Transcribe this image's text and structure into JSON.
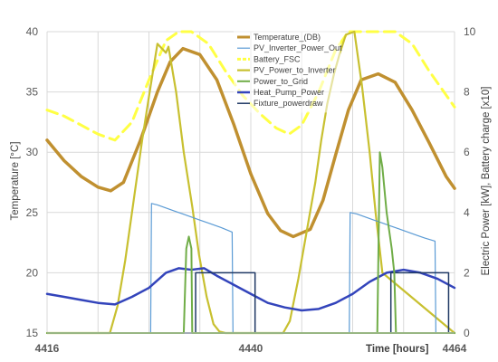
{
  "chart_data": {
    "type": "line",
    "title": "",
    "xlabel": "Time [hours]",
    "ylabel_left": "Temperature [°C]",
    "ylabel_right": "Electric Power [kW], Battery charge [x10]",
    "xlim": [
      4416,
      4464
    ],
    "ylim_left": [
      15,
      40
    ],
    "ylim_right": [
      0,
      10
    ],
    "x_ticks": [
      4416,
      4440,
      4464
    ],
    "y_left_ticks": [
      15,
      20,
      25,
      30,
      35,
      40
    ],
    "y_right_ticks": [
      0,
      2,
      4,
      6,
      8,
      10
    ],
    "grid": true,
    "legend_position": "top-center",
    "series": [
      {
        "name": "Temperature_(DB)",
        "axis": "left",
        "color": "#C09030",
        "style": "solid",
        "width": 3.5,
        "x": [
          4416,
          4418,
          4420,
          4422,
          4423.5,
          4425,
          4427,
          4429,
          4430.5,
          4432,
          4434,
          4436,
          4438,
          4440,
          4442,
          4443.5,
          4445,
          4447,
          4448.5,
          4450,
          4451.5,
          4453,
          4455,
          4457,
          4459,
          4461,
          4463,
          4464
        ],
        "y": [
          31.0,
          29.3,
          28.0,
          27.1,
          26.8,
          27.5,
          31.0,
          35.0,
          37.5,
          38.6,
          38.1,
          36.0,
          32.3,
          28.2,
          24.9,
          23.5,
          23.0,
          23.6,
          26.0,
          29.8,
          33.5,
          36.0,
          36.5,
          35.8,
          33.5,
          30.8,
          28.0,
          27.0
        ]
      },
      {
        "name": "PV_Inverter_Power_Out",
        "axis": "right",
        "color": "#5B9BD5",
        "style": "solid",
        "width": 1.2,
        "x": [
          4416,
          4428.2,
          4428.3,
          4429,
          4430,
          4431,
          4432,
          4433,
          4434,
          4435,
          4436.5,
          4437.8,
          4437.9,
          4451.6,
          4451.7,
          4452.5,
          4453.5,
          4454.5,
          4455.5,
          4456.5,
          4457.5,
          4458.5,
          4459.5,
          4460.5,
          4461.7,
          4461.8,
          4464
        ],
        "y": [
          0,
          0,
          4.3,
          4.25,
          4.15,
          4.05,
          3.95,
          3.85,
          3.75,
          3.65,
          3.5,
          3.35,
          0,
          0,
          4.0,
          3.95,
          3.85,
          3.75,
          3.65,
          3.55,
          3.45,
          3.35,
          3.25,
          3.15,
          3.05,
          0,
          0
        ]
      },
      {
        "name": "Battery_FSC",
        "axis": "right",
        "color": "#FFFF44",
        "style": "dashed",
        "width": 3,
        "x": [
          4416,
          4418,
          4420,
          4422,
          4424,
          4426,
          4428,
          4430,
          4431.5,
          4433,
          4435,
          4437,
          4439,
          4441,
          4443,
          4444.5,
          4446,
          4448,
          4450,
          4451.5,
          4453,
          4455,
          4457,
          4459,
          4461,
          4463,
          4464
        ],
        "y": [
          7.4,
          7.2,
          6.9,
          6.6,
          6.4,
          7.0,
          8.4,
          9.7,
          10.0,
          10.0,
          9.6,
          8.7,
          7.9,
          7.3,
          6.8,
          6.6,
          6.9,
          8.0,
          9.4,
          10.0,
          10.0,
          10.0,
          10.0,
          9.6,
          8.7,
          7.9,
          7.5
        ]
      },
      {
        "name": "PV_Power_to_Inverter",
        "axis": "right",
        "color": "#C8C030",
        "style": "solid",
        "width": 2.2,
        "x": [
          4416,
          4423.4,
          4424.3,
          4425.2,
          4426.2,
          4427.2,
          4428.2,
          4429.0,
          4430.0,
          4430.3,
          4431.2,
          4432.1,
          4433.1,
          4433.9,
          4434.8,
          4435.6,
          4436.3,
          4437.0,
          4443.8,
          4444.6,
          4445.6,
          4446.6,
          4447.6,
          4448.3,
          4449.0,
          4449.8,
          4450.5,
          4451.2,
          4452.2,
          4453.1,
          4454.0,
          4454.7,
          4455.5,
          4464
        ],
        "y": [
          0,
          0,
          0.9,
          2.4,
          4.4,
          6.4,
          8.2,
          9.6,
          9.3,
          9.5,
          8.0,
          6.0,
          4.2,
          2.6,
          1.2,
          0.3,
          0.05,
          0,
          0,
          0.4,
          1.8,
          3.4,
          5.0,
          6.4,
          7.6,
          8.6,
          9.3,
          9.9,
          10.0,
          8.2,
          6.0,
          4.0,
          2.0,
          0
        ]
      },
      {
        "name": "Power_to_Grid",
        "axis": "right",
        "color": "#70AD47",
        "style": "solid",
        "width": 2,
        "x": [
          4416,
          4432.1,
          4432.4,
          4432.7,
          4433.0,
          4433.1,
          4433.3,
          4464
        ],
        "y": [
          0,
          0,
          2.8,
          3.2,
          2.8,
          0,
          0,
          0
        ],
        "x2": [
          4447,
          4454.9,
          4455.2,
          4455.5,
          4456.0,
          4456.6,
          4456.9,
          4457.1,
          4464
        ],
        "y2": [
          0,
          0,
          6.0,
          5.5,
          4.0,
          2.8,
          2.0,
          0,
          0
        ]
      },
      {
        "name": "Heat_Pump_Power",
        "axis": "right",
        "color": "#3344BB",
        "style": "solid",
        "width": 2.5,
        "x": [
          4416,
          4418,
          4420,
          4422,
          4424,
          4426,
          4428,
          4430,
          4431.5,
          4433,
          4434.5,
          4436,
          4438,
          4440,
          4442,
          4444,
          4446,
          4448,
          4450,
          4452,
          4454,
          4456,
          4458,
          4460,
          4462,
          4464
        ],
        "y": [
          1.3,
          1.2,
          1.1,
          1.0,
          0.95,
          1.2,
          1.5,
          2.0,
          2.15,
          2.1,
          2.15,
          1.9,
          1.6,
          1.3,
          1.0,
          0.85,
          0.75,
          0.8,
          1.0,
          1.3,
          1.7,
          2.0,
          2.1,
          2.0,
          1.8,
          1.5
        ]
      },
      {
        "name": "Fixture_powerdraw",
        "axis": "right",
        "color": "#1F3864",
        "style": "solid",
        "width": 1.5,
        "x": [
          4416,
          4433.5,
          4433.5,
          4440.5,
          4440.5,
          4456.5,
          4456.5,
          4463.3,
          4463.3,
          4464
        ],
        "y": [
          0,
          0,
          2,
          2,
          0,
          0,
          2,
          2,
          0,
          0
        ]
      }
    ]
  }
}
